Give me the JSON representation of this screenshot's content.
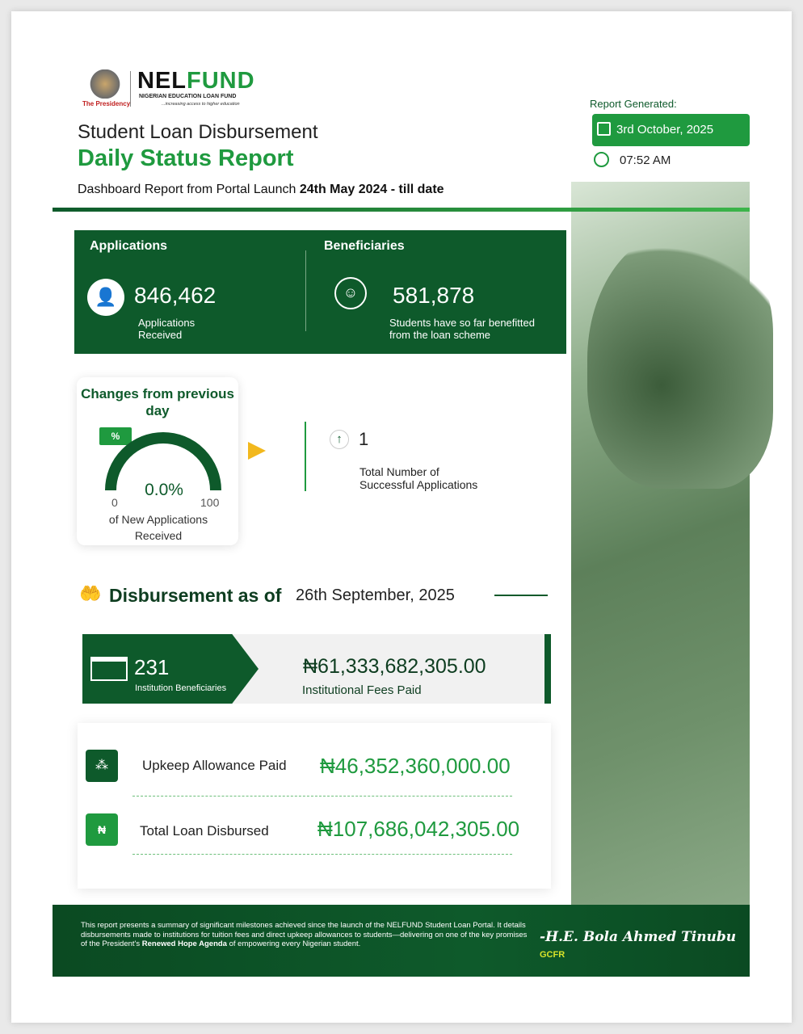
{
  "logo": {
    "brand_nel": "NEL",
    "brand_fund": "FUND",
    "full_name": "NIGERIAN EDUCATION LOAN FUND",
    "tagline": "...increasing access to higher education",
    "presidency": "The Presidency"
  },
  "header": {
    "title_line1": "Student Loan Disbursement",
    "title_line2": "Daily Status Report",
    "subtitle_prefix": "Dashboard Report from Portal Launch ",
    "subtitle_bold": "24th May 2024",
    "subtitle_suffix": " - till date"
  },
  "report": {
    "label": "Report Generated:",
    "date": "3rd October, 2025",
    "time": "07:52 AM"
  },
  "applications": {
    "heading": "Applications",
    "value": "846,462",
    "caption": "Applications Received"
  },
  "beneficiaries": {
    "heading": "Beneficiaries",
    "value": "581,878",
    "caption": "Students have so far benefitted from the loan scheme"
  },
  "changes": {
    "title": "Changes from previous day",
    "badge": "%",
    "value": "0.0%",
    "min": "0",
    "max": "100",
    "caption": "of New Applications Received",
    "gauge_fraction": 0,
    "successful_count": "1",
    "successful_caption": "Total Number of Successful Applications"
  },
  "disbursement": {
    "heading": "Disbursement as of",
    "date": "26th September, 2025",
    "institutions_count": "231",
    "institutions_caption": "Institution Beneficiaries",
    "fees_amount": "₦61,333,682,305.00",
    "fees_caption": "Institutional Fees Paid",
    "upkeep_label": "Upkeep Allowance Paid",
    "upkeep_amount": "₦46,352,360,000.00",
    "total_label": "Total Loan Disbursed",
    "total_amount": "₦107,686,042,305.00"
  },
  "footer": {
    "text_before": "This report presents a summary of significant milestones achieved since the launch of the NELFUND Student Loan Portal. It details disbursements made to institutions for tuition fees and direct upkeep allowances to students—delivering on one of the key promises of the President's ",
    "text_bold": "Renewed Hope Agenda",
    "text_after": " of empowering every Nigerian student.",
    "signature": "-H.E. Bola Ahmed Tinubu",
    "signature_suffix": "GCFR"
  },
  "colors": {
    "primary": "#0e5a2b",
    "accent": "#1f9a3f",
    "arrow": "#f2b81d"
  }
}
